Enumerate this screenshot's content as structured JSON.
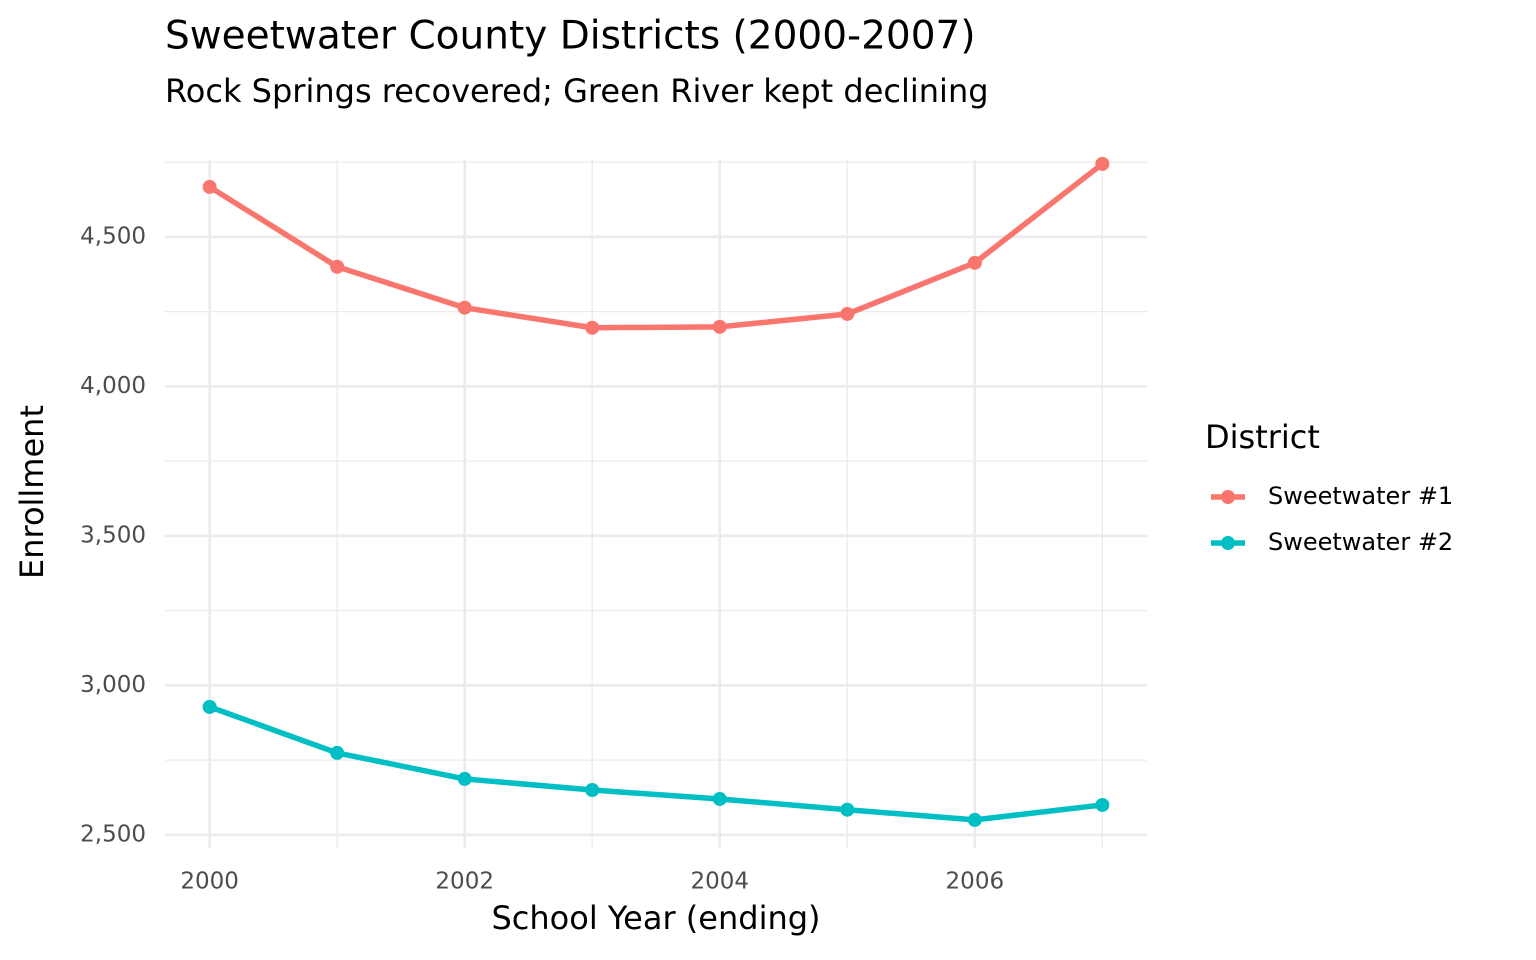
{
  "chart_data": {
    "type": "line",
    "title": "Sweetwater County Districts (2000-2007)",
    "subtitle": "Rock Springs recovered; Green River kept declining",
    "x_label": "School Year (ending)",
    "y_label": "Enrollment",
    "x": [
      2000,
      2001,
      2002,
      2003,
      2004,
      2005,
      2006,
      2007
    ],
    "series": [
      {
        "name": "Sweetwater #1",
        "color": "#f8766d",
        "values": [
          4667,
          4400,
          4263,
          4196,
          4199,
          4242,
          4413,
          4744
        ]
      },
      {
        "name": "Sweetwater #2",
        "color": "#00bfc4",
        "values": [
          2928,
          2774,
          2687,
          2650,
          2620,
          2584,
          2550,
          2600
        ]
      }
    ],
    "xlim": [
      1999.65,
      2007.35
    ],
    "ylim": [
      2456,
      4757
    ],
    "xticks": [
      2000,
      2002,
      2004,
      2006
    ],
    "yticks": [
      {
        "value": 2500,
        "label": "2,500"
      },
      {
        "value": 3000,
        "label": "3,000"
      },
      {
        "value": 3500,
        "label": "3,500"
      },
      {
        "value": 4000,
        "label": "4,000"
      },
      {
        "value": 4500,
        "label": "4,500"
      }
    ],
    "minor_xticks": [
      2001,
      2003,
      2005,
      2007
    ],
    "minor_yticks": [
      2750,
      3250,
      3750,
      4250,
      4750
    ],
    "grid": true,
    "legend_title": "District",
    "legend_position": "right"
  }
}
